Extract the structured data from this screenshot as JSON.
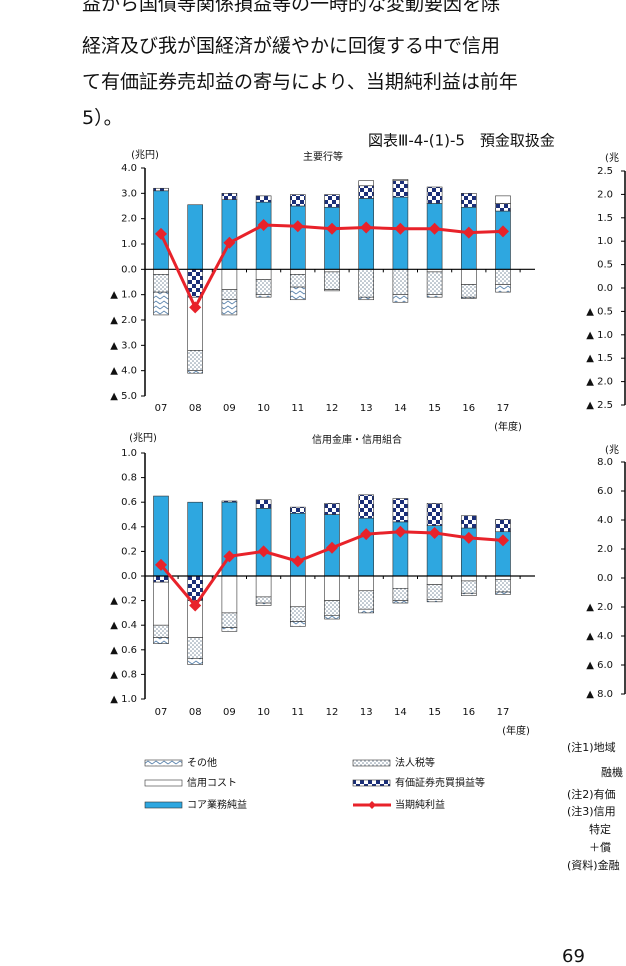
{
  "text_lines": [
    "益から国債等関係損益等の一時的な変動要因を除",
    "経済及び我が国経済が緩やかに回復する中で信用",
    "て有価証券売却益の寄与により、当期純利益は前年",
    "5）。"
  ],
  "figure_title": "図表Ⅲ-4-(1)-5　預金取扱金",
  "chart_data": [
    {
      "type": "bar",
      "title": "主要行等",
      "y_label": "(兆円)",
      "x_label": "(年度)",
      "categories": [
        "07",
        "08",
        "09",
        "10",
        "11",
        "12",
        "13",
        "14",
        "15",
        "16",
        "17"
      ],
      "ylim": [
        -5,
        4
      ],
      "yticks": [
        {
          "value": 4,
          "label": "4.0"
        },
        {
          "value": 3,
          "label": "3.0"
        },
        {
          "value": 2,
          "label": "2.0"
        },
        {
          "value": 1,
          "label": "1.0"
        },
        {
          "value": 0,
          "label": "0.0"
        },
        {
          "value": -1,
          "label": "▲ 1.0"
        },
        {
          "value": -2,
          "label": "▲ 2.0"
        },
        {
          "value": -3,
          "label": "▲ 3.0"
        },
        {
          "value": -4,
          "label": "▲ 4.0"
        },
        {
          "value": -5,
          "label": "▲ 5.0"
        }
      ],
      "series": [
        {
          "name": "コア業務純益",
          "color": "#2ea7e0",
          "pattern": "solid",
          "values": [
            3.1,
            2.55,
            2.75,
            2.65,
            2.5,
            2.45,
            2.8,
            2.85,
            2.6,
            2.45,
            2.3
          ]
        },
        {
          "name": "有価証券売買損益等",
          "color": "#1b2f78",
          "pattern": "checker",
          "values": [
            0.1,
            -1.1,
            0.25,
            0.25,
            0.45,
            0.5,
            0.5,
            0.65,
            0.65,
            0.55,
            0.3
          ]
        },
        {
          "name": "信用コスト",
          "color": "#ffffff",
          "pattern": "solid",
          "values": [
            -0.2,
            -2.1,
            -0.8,
            -0.4,
            -0.2,
            -0.1,
            0.2,
            0.05,
            -0.1,
            -0.6,
            0.3
          ]
        },
        {
          "name": "法人税等",
          "color": "#8a9aa8",
          "pattern": "dots",
          "values": [
            -0.7,
            -0.8,
            -0.4,
            -0.6,
            -0.5,
            -0.7,
            -1.1,
            -1.0,
            -0.9,
            -0.5,
            -0.6
          ]
        },
        {
          "name": "その他",
          "color": "#6a8fb0",
          "pattern": "zigzag",
          "values": [
            -0.9,
            -0.1,
            -0.6,
            -0.1,
            -0.5,
            -0.05,
            -0.1,
            -0.3,
            -0.1,
            -0.05,
            -0.3
          ]
        },
        {
          "name": "当期純利益",
          "color": "#e8222a",
          "pattern": "line",
          "values": [
            1.4,
            -1.5,
            1.05,
            1.75,
            1.7,
            1.6,
            1.65,
            1.6,
            1.6,
            1.45,
            1.5
          ]
        }
      ]
    },
    {
      "type": "bar",
      "title": "信用金庫・信用組合",
      "y_label": "(兆円)",
      "x_label": "(年度)",
      "categories": [
        "07",
        "08",
        "09",
        "10",
        "11",
        "12",
        "13",
        "14",
        "15",
        "16",
        "17"
      ],
      "ylim": [
        -1,
        1
      ],
      "yticks": [
        {
          "value": 1,
          "label": "1.0"
        },
        {
          "value": 0.8,
          "label": "0.8"
        },
        {
          "value": 0.6,
          "label": "0.6"
        },
        {
          "value": 0.4,
          "label": "0.4"
        },
        {
          "value": 0.2,
          "label": "0.2"
        },
        {
          "value": 0,
          "label": "0.0"
        },
        {
          "value": -0.2,
          "label": "▲ 0.2"
        },
        {
          "value": -0.4,
          "label": "▲ 0.4"
        },
        {
          "value": -0.6,
          "label": "▲ 0.6"
        },
        {
          "value": -0.8,
          "label": "▲ 0.8"
        },
        {
          "value": -1,
          "label": "▲ 1.0"
        }
      ],
      "series": [
        {
          "color": "#2ea7e0",
          "pattern": "solid",
          "values": [
            0.65,
            0.6,
            0.6,
            0.55,
            0.51,
            0.5,
            0.47,
            0.44,
            0.41,
            0.39,
            0.36
          ]
        },
        {
          "color": "#1b2f78",
          "pattern": "checker",
          "values": [
            -0.05,
            -0.2,
            0.01,
            0.07,
            0.05,
            0.09,
            0.19,
            0.19,
            0.18,
            0.1,
            0.1
          ]
        },
        {
          "color": "#ffffff",
          "pattern": "solid",
          "values": [
            -0.35,
            -0.3,
            -0.3,
            -0.17,
            -0.25,
            -0.2,
            -0.12,
            -0.1,
            -0.07,
            -0.04,
            -0.03
          ]
        },
        {
          "color": "#8a9aa8",
          "pattern": "dots",
          "values": [
            -0.1,
            -0.17,
            -0.12,
            -0.05,
            -0.12,
            -0.12,
            -0.15,
            -0.1,
            -0.12,
            -0.1,
            -0.1
          ]
        },
        {
          "color": "#6a8fb0",
          "pattern": "zigzag",
          "values": [
            -0.05,
            -0.05,
            -0.03,
            -0.02,
            -0.04,
            -0.03,
            -0.03,
            -0.02,
            -0.02,
            -0.02,
            -0.02
          ]
        },
        {
          "color": "#e8222a",
          "pattern": "line",
          "values": [
            0.09,
            -0.24,
            0.16,
            0.2,
            0.12,
            0.23,
            0.34,
            0.36,
            0.35,
            0.31,
            0.29
          ]
        }
      ]
    },
    {
      "type": "bar",
      "y_label": "(兆",
      "ylim": [
        -2.5,
        2.5
      ],
      "yticks": [
        {
          "value": 2.5,
          "label": "2.5"
        },
        {
          "value": 2,
          "label": "2.0"
        },
        {
          "value": 1.5,
          "label": "1.5"
        },
        {
          "value": 1,
          "label": "1.0"
        },
        {
          "value": 0.5,
          "label": "0.5"
        },
        {
          "value": 0,
          "label": "0.0"
        },
        {
          "value": -0.5,
          "label": "▲ 0.5"
        },
        {
          "value": -1,
          "label": "▲ 1.0"
        },
        {
          "value": -1.5,
          "label": "▲ 1.5"
        },
        {
          "value": -2,
          "label": "▲ 2.0"
        },
        {
          "value": -2.5,
          "label": "▲ 2.5"
        }
      ]
    },
    {
      "type": "bar",
      "y_label": "(兆",
      "ylim": [
        -8,
        8
      ],
      "yticks": [
        {
          "value": 8,
          "label": "8.0"
        },
        {
          "value": 6,
          "label": "6.0"
        },
        {
          "value": 4,
          "label": "4.0"
        },
        {
          "value": 2,
          "label": "2.0"
        },
        {
          "value": 0,
          "label": "0.0"
        },
        {
          "value": -2,
          "label": "▲ 2.0"
        },
        {
          "value": -4,
          "label": "▲ 4.0"
        },
        {
          "value": -6,
          "label": "▲ 6.0"
        },
        {
          "value": -8,
          "label": "▲ 8.0"
        }
      ]
    }
  ],
  "notes": [
    "(注1)地域",
    "融機",
    "(注2)有価",
    "(注3)信用",
    "特定",
    "＋償",
    "(資料)金融"
  ],
  "page_number": "69"
}
